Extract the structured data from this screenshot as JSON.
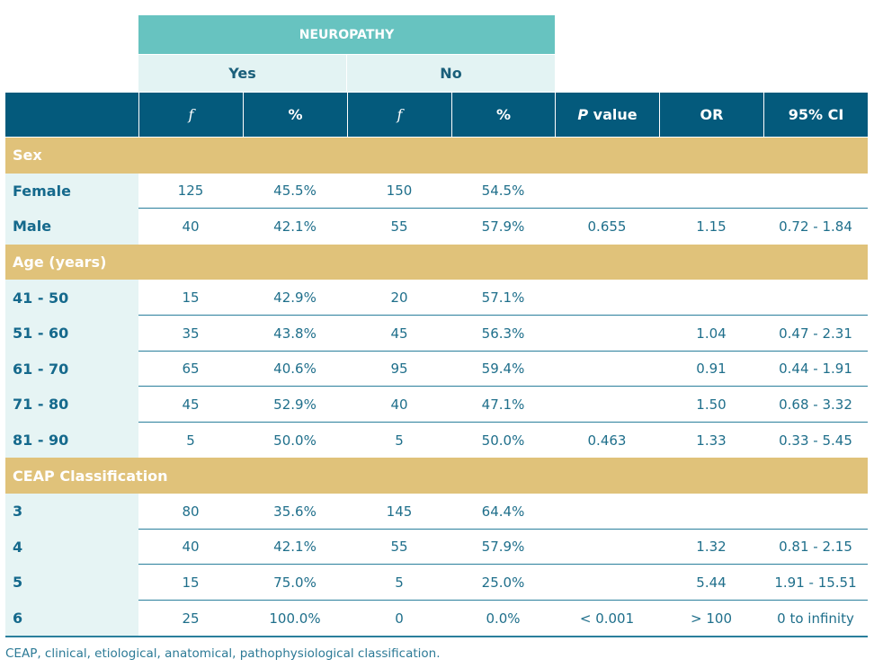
{
  "header": {
    "group_label": "NEUROPATHY",
    "yes": "Yes",
    "no": "No",
    "columns": [
      "f",
      "%",
      "f",
      "%",
      "P value",
      "OR",
      "95% CI"
    ]
  },
  "sections": [
    {
      "title": "Sex",
      "rows": [
        {
          "label": "Female",
          "cells": [
            "125",
            "45.5%",
            "150",
            "54.5%",
            "",
            "",
            ""
          ]
        },
        {
          "label": "Male",
          "cells": [
            "40",
            "42.1%",
            "55",
            "57.9%",
            "0.655",
            "1.15",
            "0.72 - 1.84"
          ]
        }
      ]
    },
    {
      "title": "Age (years)",
      "rows": [
        {
          "label": "41 - 50",
          "cells": [
            "15",
            "42.9%",
            "20",
            "57.1%",
            "",
            "",
            ""
          ]
        },
        {
          "label": "51 - 60",
          "cells": [
            "35",
            "43.8%",
            "45",
            "56.3%",
            "",
            "1.04",
            "0.47 - 2.31"
          ]
        },
        {
          "label": "61 - 70",
          "cells": [
            "65",
            "40.6%",
            "95",
            "59.4%",
            "",
            "0.91",
            "0.44 - 1.91"
          ]
        },
        {
          "label": "71 - 80",
          "cells": [
            "45",
            "52.9%",
            "40",
            "47.1%",
            "",
            "1.50",
            "0.68 - 3.32"
          ]
        },
        {
          "label": "81 - 90",
          "cells": [
            "5",
            "50.0%",
            "5",
            "50.0%",
            "0.463",
            "1.33",
            "0.33 - 5.45"
          ]
        }
      ]
    },
    {
      "title": "CEAP Classification",
      "rows": [
        {
          "label": "3",
          "cells": [
            "80",
            "35.6%",
            "145",
            "64.4%",
            "",
            "",
            ""
          ]
        },
        {
          "label": "4",
          "cells": [
            "40",
            "42.1%",
            "55",
            "57.9%",
            "",
            "1.32",
            "0.81 - 2.15"
          ]
        },
        {
          "label": "5",
          "cells": [
            "15",
            "75.0%",
            "5",
            "25.0%",
            "",
            "5.44",
            "1.91 - 15.51"
          ]
        },
        {
          "label": "6",
          "cells": [
            "25",
            "100.0%",
            "0",
            "0.0%",
            "< 0.001",
            "> 100",
            "0 to infinity"
          ]
        }
      ]
    }
  ],
  "footnote": "CEAP, clinical, etiological, anatomical, pathophysiological classification."
}
